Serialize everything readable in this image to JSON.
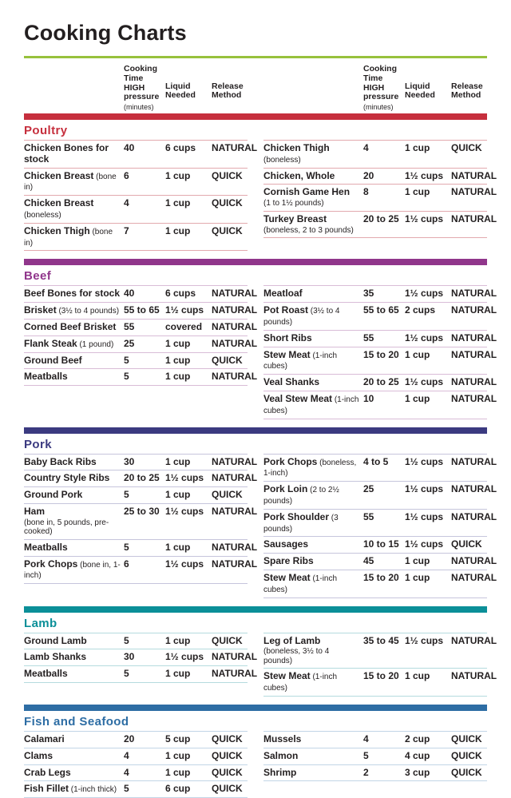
{
  "page": {
    "title": "Cooking Charts"
  },
  "theme": {
    "top_rule_color": "#97c13c",
    "text_color": "#231f20"
  },
  "table_header": {
    "time_label": "Cooking Time HIGH pressure",
    "time_note": "(minutes)",
    "liquid_label": "Liquid Needed",
    "release_label": "Release Method"
  },
  "sections": [
    {
      "name": "Poultry",
      "color": "#c62f3d",
      "separator": "#e2a9ae",
      "left": [
        {
          "item": "Chicken Bones for stock",
          "note": "",
          "note_below": false,
          "time": "40",
          "liquid": "6 cups",
          "release": "NATURAL"
        },
        {
          "item": "Chicken Breast",
          "note": "(bone in)",
          "note_below": false,
          "time": "6",
          "liquid": "1 cup",
          "release": "QUICK"
        },
        {
          "item": "Chicken Breast",
          "note": "(boneless)",
          "note_below": false,
          "time": "4",
          "liquid": "1 cup",
          "release": "QUICK"
        },
        {
          "item": "Chicken Thigh",
          "note": "(bone in)",
          "note_below": false,
          "time": "7",
          "liquid": "1 cup",
          "release": "QUICK"
        }
      ],
      "right": [
        {
          "item": "Chicken Thigh",
          "note": "(boneless)",
          "note_below": false,
          "time": "4",
          "liquid": "1 cup",
          "release": "QUICK"
        },
        {
          "item": "Chicken, Whole",
          "note": "",
          "note_below": false,
          "time": "20",
          "liquid": "1½ cups",
          "release": "NATURAL"
        },
        {
          "item": "Cornish Game Hen",
          "note": "(1 to 1½ pounds)",
          "note_below": true,
          "time": "8",
          "liquid": "1 cup",
          "release": "NATURAL"
        },
        {
          "item": "Turkey Breast",
          "note": "(boneless, 2 to 3 pounds)",
          "note_below": true,
          "time": "20 to 25",
          "liquid": "1½ cups",
          "release": "NATURAL"
        }
      ]
    },
    {
      "name": "Beef",
      "color": "#90368b",
      "separator": "#d9bcd7",
      "left": [
        {
          "item": "Beef Bones for stock",
          "note": "",
          "note_below": false,
          "time": "40",
          "liquid": "6 cups",
          "release": "NATURAL"
        },
        {
          "item": "Brisket",
          "note": "(3½ to 4 pounds)",
          "note_below": false,
          "time": "55 to 65",
          "liquid": "1½ cups",
          "release": "NATURAL"
        },
        {
          "item": "Corned Beef Brisket",
          "note": "",
          "note_below": false,
          "time": "55",
          "liquid": "covered",
          "release": "NATURAL"
        },
        {
          "item": "Flank Steak",
          "note": "(1 pound)",
          "note_below": false,
          "time": "25",
          "liquid": "1 cup",
          "release": "NATURAL"
        },
        {
          "item": "Ground Beef",
          "note": "",
          "note_below": false,
          "time": "5",
          "liquid": "1 cup",
          "release": "QUICK"
        },
        {
          "item": "Meatballs",
          "note": "",
          "note_below": false,
          "time": "5",
          "liquid": "1 cup",
          "release": "NATURAL"
        }
      ],
      "right": [
        {
          "item": "Meatloaf",
          "note": "",
          "note_below": false,
          "time": "35",
          "liquid": "1½ cups",
          "release": "NATURAL"
        },
        {
          "item": "Pot Roast",
          "note": "(3½ to 4 pounds)",
          "note_below": false,
          "time": "55 to 65",
          "liquid": "2 cups",
          "release": "NATURAL"
        },
        {
          "item": "Short Ribs",
          "note": "",
          "note_below": false,
          "time": "55",
          "liquid": "1½ cups",
          "release": "NATURAL"
        },
        {
          "item": "Stew Meat",
          "note": "(1-inch cubes)",
          "note_below": false,
          "time": "15 to 20",
          "liquid": "1 cup",
          "release": "NATURAL"
        },
        {
          "item": "Veal Shanks",
          "note": "",
          "note_below": false,
          "time": "20 to 25",
          "liquid": "1½ cups",
          "release": "NATURAL"
        },
        {
          "item": "Veal Stew Meat",
          "note": "(1-inch cubes)",
          "note_below": false,
          "time": "10",
          "liquid": "1 cup",
          "release": "NATURAL"
        }
      ]
    },
    {
      "name": "Pork",
      "color": "#3b3a80",
      "separator": "#c6c5dc",
      "left": [
        {
          "item": "Baby Back Ribs",
          "note": "",
          "note_below": false,
          "time": "30",
          "liquid": "1 cup",
          "release": "NATURAL"
        },
        {
          "item": "Country Style Ribs",
          "note": "",
          "note_below": false,
          "time": "20 to 25",
          "liquid": "1½ cups",
          "release": "NATURAL"
        },
        {
          "item": "Ground Pork",
          "note": "",
          "note_below": false,
          "time": "5",
          "liquid": "1 cup",
          "release": "QUICK"
        },
        {
          "item": "Ham",
          "note": "(bone in, 5 pounds, pre-cooked)",
          "note_below": true,
          "time": "25 to 30",
          "liquid": "1½ cups",
          "release": "NATURAL"
        },
        {
          "item": "Meatballs",
          "note": "",
          "note_below": false,
          "time": "5",
          "liquid": "1 cup",
          "release": "NATURAL"
        },
        {
          "item": "Pork Chops",
          "note": "(bone in, 1-inch)",
          "note_below": false,
          "time": "6",
          "liquid": "1½ cups",
          "release": "NATURAL"
        }
      ],
      "right": [
        {
          "item": "Pork Chops",
          "note": "(boneless, 1-inch)",
          "note_below": false,
          "time": "4 to 5",
          "liquid": "1½ cups",
          "release": "NATURAL"
        },
        {
          "item": "Pork Loin",
          "note": "(2 to 2½ pounds)",
          "note_below": false,
          "time": "25",
          "liquid": "1½ cups",
          "release": "NATURAL"
        },
        {
          "item": "Pork Shoulder",
          "note": "(3 pounds)",
          "note_below": false,
          "time": "55",
          "liquid": "1½ cups",
          "release": "NATURAL"
        },
        {
          "item": "Sausages",
          "note": "",
          "note_below": false,
          "time": "10 to 15",
          "liquid": "1½ cups",
          "release": "QUICK"
        },
        {
          "item": "Spare Ribs",
          "note": "",
          "note_below": false,
          "time": "45",
          "liquid": "1 cup",
          "release": "NATURAL"
        },
        {
          "item": "Stew Meat",
          "note": "(1-inch cubes)",
          "note_below": false,
          "time": "15 to 20",
          "liquid": "1 cup",
          "release": "NATURAL"
        }
      ]
    },
    {
      "name": "Lamb",
      "color": "#0b8f98",
      "separator": "#b5dbde",
      "left": [
        {
          "item": "Ground Lamb",
          "note": "",
          "note_below": false,
          "time": "5",
          "liquid": "1 cup",
          "release": "QUICK"
        },
        {
          "item": "Lamb Shanks",
          "note": "",
          "note_below": false,
          "time": "30",
          "liquid": "1½ cups",
          "release": "NATURAL"
        },
        {
          "item": "Meatballs",
          "note": "",
          "note_below": false,
          "time": "5",
          "liquid": "1 cup",
          "release": "NATURAL"
        }
      ],
      "right": [
        {
          "item": "Leg of Lamb",
          "note": "(boneless, 3½ to 4 pounds)",
          "note_below": true,
          "time": "35 to 45",
          "liquid": "1½ cups",
          "release": "NATURAL"
        },
        {
          "item": "Stew Meat",
          "note": "(1-inch cubes)",
          "note_below": false,
          "time": "15 to 20",
          "liquid": "1 cup",
          "release": "NATURAL"
        }
      ]
    },
    {
      "name": "Fish and Seafood",
      "color": "#2d6da4",
      "separator": "#c2d5e6",
      "left": [
        {
          "item": "Calamari",
          "note": "",
          "note_below": false,
          "time": "20",
          "liquid": "5 cup",
          "release": "QUICK"
        },
        {
          "item": "Clams",
          "note": "",
          "note_below": false,
          "time": "4",
          "liquid": "1 cup",
          "release": "QUICK"
        },
        {
          "item": "Crab Legs",
          "note": "",
          "note_below": false,
          "time": "4",
          "liquid": "1 cup",
          "release": "QUICK"
        },
        {
          "item": "Fish Fillet",
          "note": "(1-inch thick)",
          "note_below": false,
          "time": "5",
          "liquid": "6 cup",
          "release": "QUICK"
        }
      ],
      "right": [
        {
          "item": "Mussels",
          "note": "",
          "note_below": false,
          "time": "4",
          "liquid": "2 cup",
          "release": "QUICK"
        },
        {
          "item": "Salmon",
          "note": "",
          "note_below": false,
          "time": "5",
          "liquid": "4 cup",
          "release": "QUICK"
        },
        {
          "item": "Shrimp",
          "note": "",
          "note_below": false,
          "time": "2",
          "liquid": "3 cup",
          "release": "QUICK"
        }
      ]
    }
  ]
}
